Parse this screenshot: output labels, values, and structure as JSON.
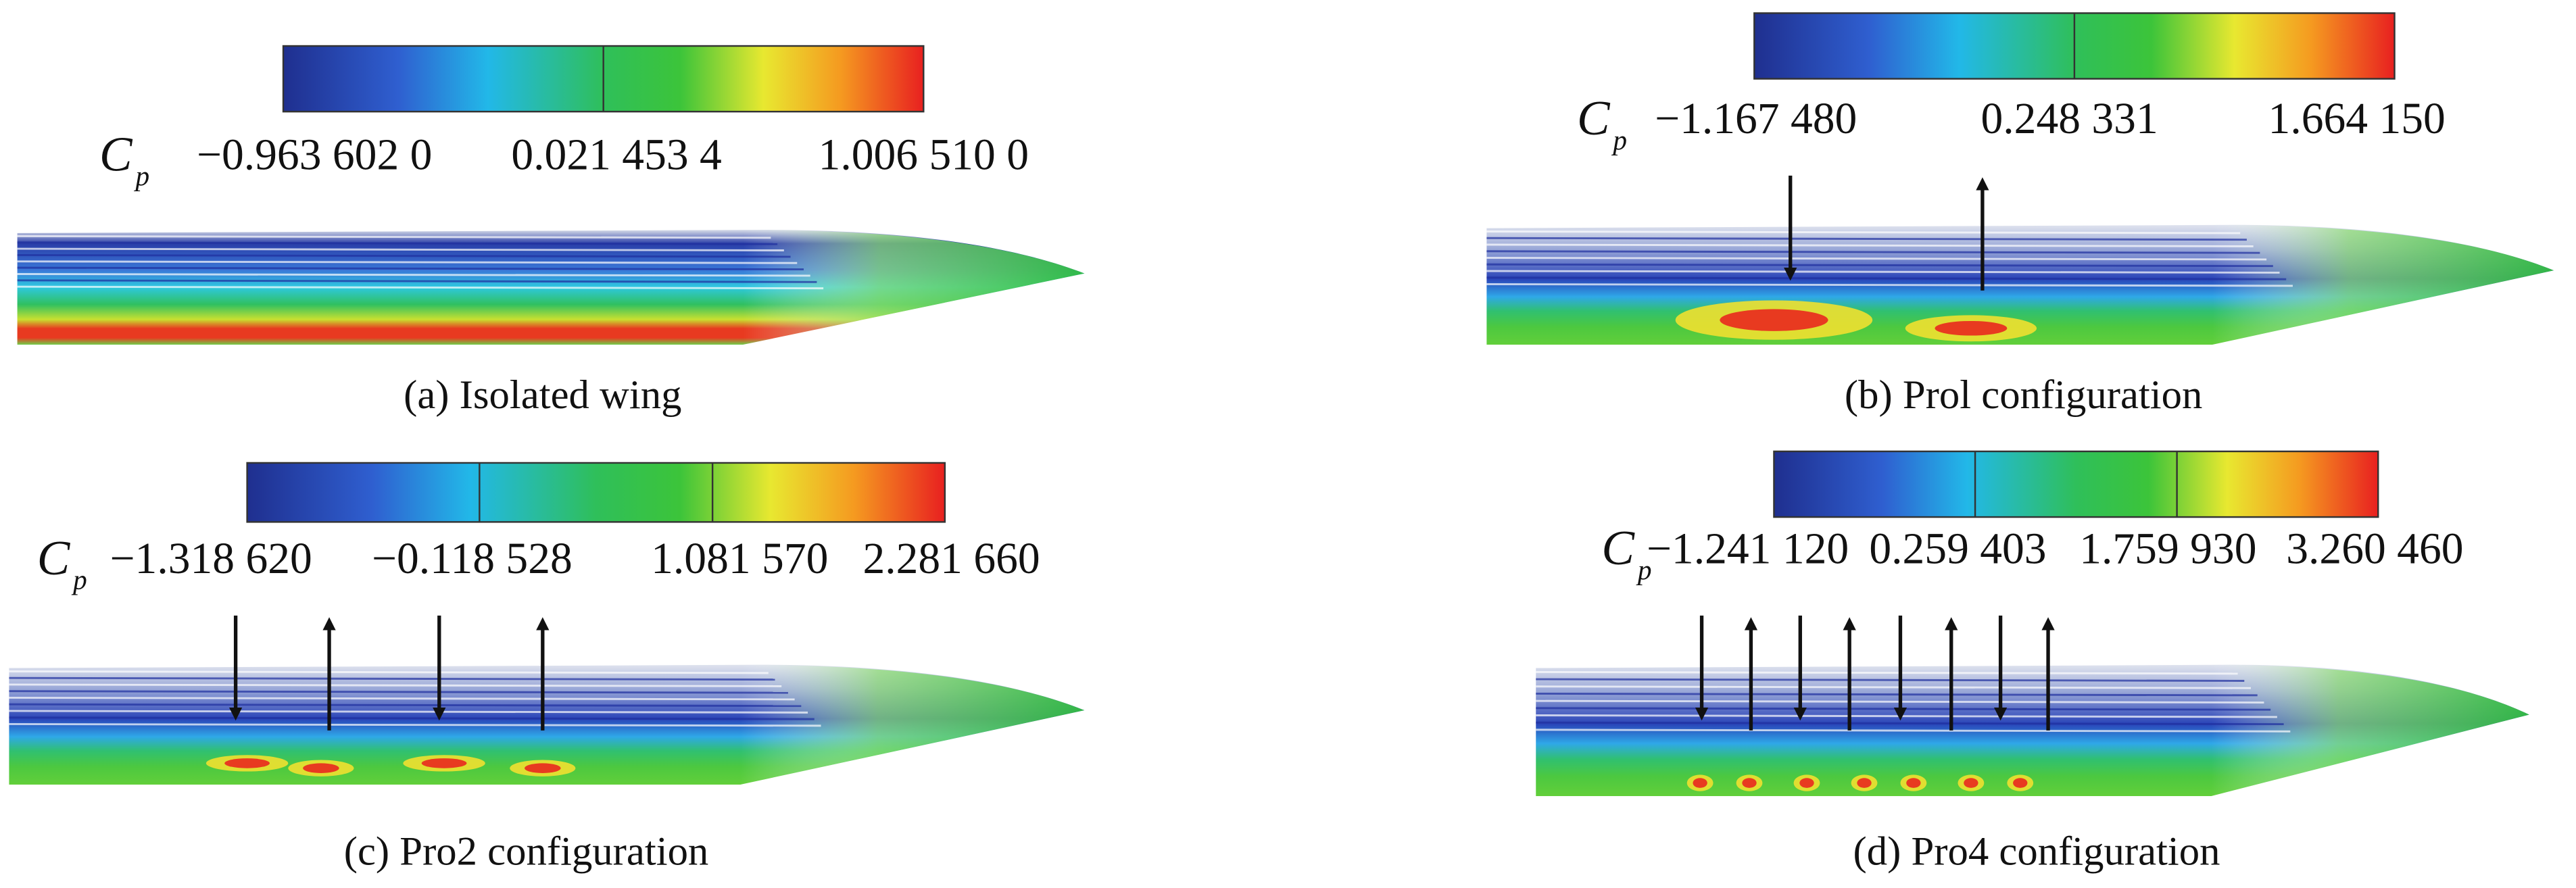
{
  "panels": [
    {
      "symbol": "C",
      "subscript": "p",
      "labels": [
        "−0.963 602 0",
        "0.021 453 4",
        "1.006 510 0"
      ],
      "caption": "(a) Isolated wing"
    },
    {
      "symbol": "C",
      "subscript": "p",
      "labels": [
        "−1.167 480",
        "0.248 331",
        "1.664 150"
      ],
      "caption": "(b) Prol configuration"
    },
    {
      "symbol": "C",
      "subscript": "p",
      "labels": [
        "−1.318 620",
        "−0.118 528",
        "1.081 570",
        "2.281 660"
      ],
      "caption": "(c) Pro2 configuration"
    },
    {
      "symbol": "C",
      "subscript": "p",
      "labels": [
        "−1.241 120",
        "0.259 403",
        "1.759 930",
        "3.260 460"
      ],
      "caption": "(d) Pro4 configuration"
    }
  ]
}
